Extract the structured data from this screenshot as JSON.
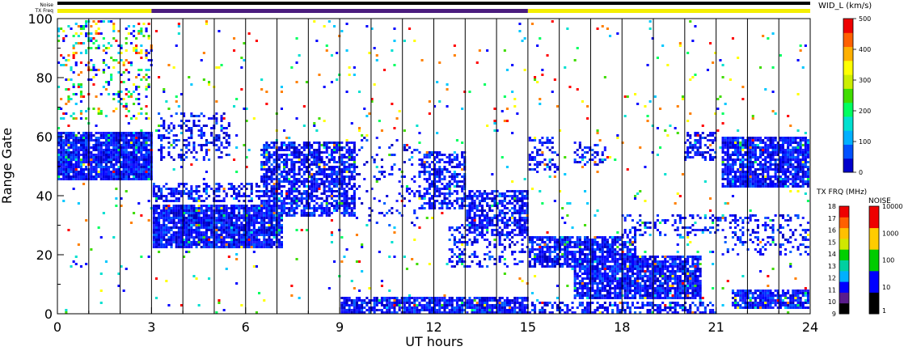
{
  "chart_data": {
    "type": "heatmap",
    "xlabel": "UT hours",
    "ylabel": "Range Gate",
    "xlim": [
      0,
      24
    ],
    "ylim": [
      0,
      100
    ],
    "x_ticks": [
      "0",
      "3",
      "6",
      "9",
      "12",
      "15",
      "18",
      "21",
      "24"
    ],
    "y_ticks": [
      "0",
      "20",
      "40",
      "60",
      "80",
      "100"
    ],
    "grid": "vertical lines every 1 h",
    "top_bars": {
      "noise_label": "Noise",
      "txfreq_label": "TX Freq",
      "txfreq_segments": [
        {
          "from": 0,
          "to": 3,
          "color": "#f4ee00"
        },
        {
          "from": 3,
          "to": 15,
          "color": "#4b1c7e"
        },
        {
          "from": 15,
          "to": 24,
          "color": "#f4ee00"
        }
      ]
    },
    "echo_regions": [
      {
        "x0": 0.0,
        "x1": 3.0,
        "y0": 45,
        "y1": 62,
        "density": 0.95,
        "color": "blue"
      },
      {
        "x0": 3.0,
        "x1": 7.2,
        "y0": 22,
        "y1": 37,
        "density": 0.9,
        "color": "blue"
      },
      {
        "x0": 3.0,
        "x1": 6.5,
        "y0": 38,
        "y1": 44,
        "density": 0.5,
        "color": "blue"
      },
      {
        "x0": 3.2,
        "x1": 5.5,
        "y0": 52,
        "y1": 68,
        "density": 0.35,
        "color": "blue"
      },
      {
        "x0": 6.5,
        "x1": 9.5,
        "y0": 33,
        "y1": 58,
        "density": 0.7,
        "color": "blue"
      },
      {
        "x0": 9.5,
        "x1": 11.5,
        "y0": 30,
        "y1": 60,
        "density": 0.12,
        "color": "blue"
      },
      {
        "x0": 11.5,
        "x1": 13.0,
        "y0": 35,
        "y1": 55,
        "density": 0.55,
        "color": "blue"
      },
      {
        "x0": 13.0,
        "x1": 15.0,
        "y0": 26,
        "y1": 42,
        "density": 0.7,
        "color": "blue"
      },
      {
        "x0": 12.5,
        "x1": 15.0,
        "y0": 16,
        "y1": 30,
        "density": 0.3,
        "color": "blue"
      },
      {
        "x0": 15.0,
        "x1": 18.5,
        "y0": 16,
        "y1": 26,
        "density": 0.8,
        "color": "blue"
      },
      {
        "x0": 16.5,
        "x1": 20.5,
        "y0": 5,
        "y1": 20,
        "density": 0.85,
        "color": "blue"
      },
      {
        "x0": 15.0,
        "x1": 16.0,
        "y0": 48,
        "y1": 60,
        "density": 0.4,
        "color": "blue"
      },
      {
        "x0": 16.5,
        "x1": 17.5,
        "y0": 50,
        "y1": 58,
        "density": 0.35,
        "color": "blue"
      },
      {
        "x0": 18.0,
        "x1": 21.0,
        "y0": 26,
        "y1": 34,
        "density": 0.3,
        "color": "blue"
      },
      {
        "x0": 20.0,
        "x1": 21.0,
        "y0": 52,
        "y1": 62,
        "density": 0.5,
        "color": "blue"
      },
      {
        "x0": 21.2,
        "x1": 24.0,
        "y0": 43,
        "y1": 60,
        "density": 0.85,
        "color": "blue"
      },
      {
        "x0": 21.0,
        "x1": 24.0,
        "y0": 20,
        "y1": 34,
        "density": 0.25,
        "color": "blue"
      },
      {
        "x0": 9.0,
        "x1": 15.0,
        "y0": 0,
        "y1": 6,
        "density": 0.85,
        "color": "blue"
      },
      {
        "x0": 14.5,
        "x1": 21.0,
        "y0": 0,
        "y1": 4,
        "density": 0.5,
        "color": "blue"
      },
      {
        "x0": 21.5,
        "x1": 24.0,
        "y0": 2,
        "y1": 8,
        "density": 0.8,
        "color": "blue"
      },
      {
        "x0": 0.0,
        "x1": 3.0,
        "y0": 66,
        "y1": 100,
        "density": 0.2,
        "color": "mixed"
      },
      {
        "x0": 0.0,
        "x1": 24.0,
        "y0": 0,
        "y1": 100,
        "density": 0.02,
        "color": "mixed"
      }
    ],
    "velocity_scale": {
      "title": "WID_L (km/s)",
      "ticks": [
        "0",
        "100",
        "200",
        "300",
        "400",
        "500"
      ],
      "min": 0,
      "max": 500,
      "colors": [
        "#0000cc",
        "#0050ff",
        "#00b0ff",
        "#00e0d0",
        "#00ff60",
        "#40dd00",
        "#ccee00",
        "#ffff00",
        "#ffb000",
        "#ff6000",
        "#ee0000"
      ]
    },
    "txfreq_scale": {
      "title": "TX FRQ (MHz)",
      "ticks": [
        "9",
        "10",
        "11",
        "12",
        "13",
        "14",
        "15",
        "16",
        "17",
        "18"
      ],
      "colors": [
        "#000000",
        "#5a1c8c",
        "#0000ff",
        "#00b0ff",
        "#00d0a0",
        "#00d000",
        "#d0e800",
        "#ffc000",
        "#ff6000",
        "#ee0000"
      ]
    },
    "noise_scale": {
      "title": "NOISE",
      "ticks": [
        "1",
        "10",
        "100",
        "1000",
        "10000"
      ],
      "colors": [
        "#000000",
        "#0000ff",
        "#00cc00",
        "#ffcc00",
        "#ee0000"
      ]
    }
  }
}
